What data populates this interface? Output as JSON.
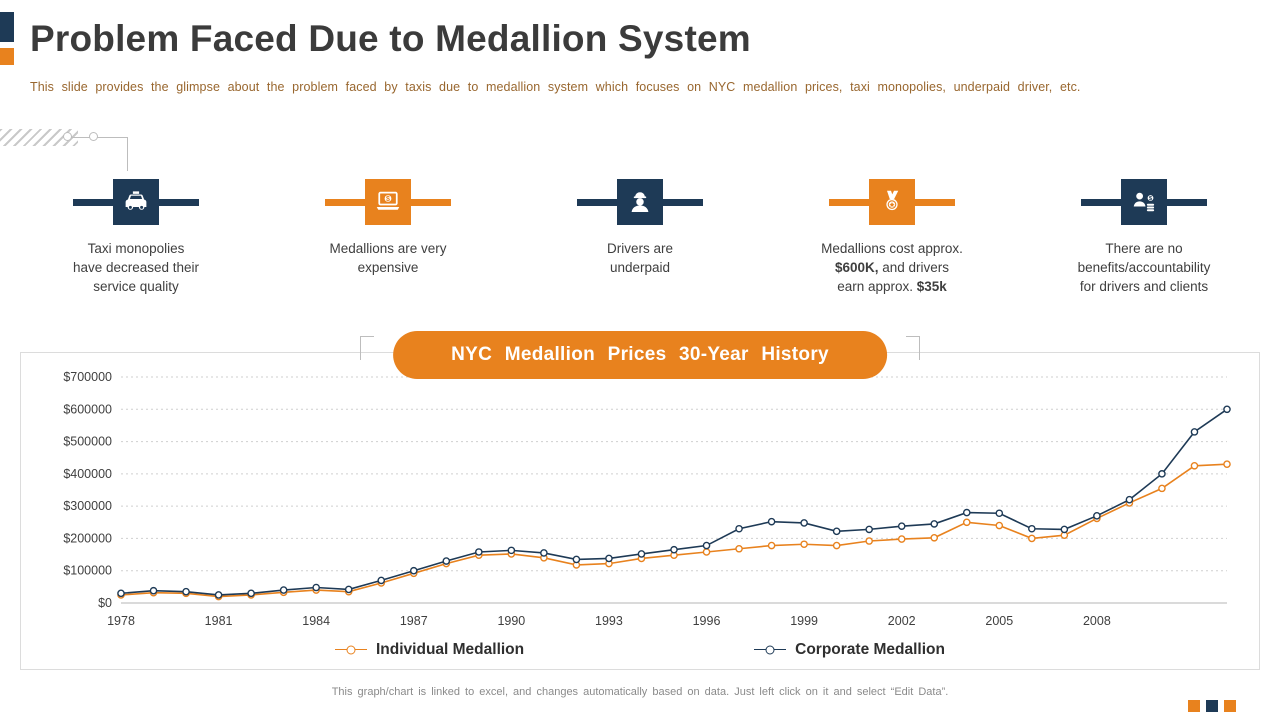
{
  "slide": {
    "title": "Problem Faced Due to Medallion System",
    "subtitle": "This slide provides the glimpse about the problem faced by taxis due to medallion system which focuses on NYC medallion prices, taxi monopolies, underpaid driver, etc."
  },
  "colors": {
    "navy": "#1E3A56",
    "orange": "#E8821E",
    "grid": "#cfcfcf",
    "text": "#3f3f3f"
  },
  "problems": [
    {
      "icon": "taxi-icon",
      "color": "navy",
      "lines": [
        "Taxi monopolies",
        "have decreased their",
        "service quality"
      ]
    },
    {
      "icon": "laptop-money-icon",
      "color": "orange",
      "lines": [
        "Medallions are very",
        "expensive"
      ]
    },
    {
      "icon": "driver-icon",
      "color": "navy",
      "lines": [
        "Drivers are",
        "underpaid"
      ]
    },
    {
      "icon": "medal-icon",
      "color": "orange",
      "line1": "Medallions cost approx.",
      "line2_bold": "$600K,",
      "line2_rest": " and drivers",
      "line3_normal": "earn approx. ",
      "line3_bold": "$35k"
    },
    {
      "icon": "benefits-icon",
      "color": "navy",
      "lines": [
        "There are no",
        "benefits/accountability",
        "for drivers and clients"
      ]
    }
  ],
  "banner": {
    "label": "NYC Medallion Prices 30-Year History"
  },
  "chart_data": {
    "type": "line",
    "title": "NYC Medallion Prices 30-Year History",
    "x": [
      1978,
      1979,
      1980,
      1981,
      1982,
      1983,
      1984,
      1985,
      1986,
      1987,
      1988,
      1989,
      1990,
      1991,
      1992,
      1993,
      1994,
      1995,
      1996,
      1997,
      1998,
      1999,
      2000,
      2001,
      2002,
      2003,
      2004,
      2005,
      2006,
      2007,
      2008,
      2009,
      2010,
      2011,
      2012
    ],
    "series": [
      {
        "name": "Individual Medallion",
        "color": "#E8821E",
        "values": [
          25000,
          32000,
          30000,
          20000,
          25000,
          33000,
          40000,
          35000,
          62000,
          92000,
          122000,
          148000,
          152000,
          140000,
          118000,
          122000,
          138000,
          148000,
          158000,
          168000,
          178000,
          182000,
          178000,
          192000,
          198000,
          202000,
          250000,
          240000,
          200000,
          210000,
          262000,
          310000,
          355000,
          425000,
          430000
        ]
      },
      {
        "name": "Corporate Medallion",
        "color": "#1E3A56",
        "values": [
          30000,
          38000,
          35000,
          25000,
          30000,
          40000,
          48000,
          42000,
          70000,
          100000,
          130000,
          158000,
          163000,
          155000,
          135000,
          138000,
          152000,
          165000,
          178000,
          230000,
          252000,
          248000,
          222000,
          228000,
          238000,
          245000,
          280000,
          278000,
          230000,
          228000,
          270000,
          320000,
          400000,
          530000,
          600000
        ]
      }
    ],
    "ylim": [
      0,
      700000
    ],
    "yticks": [
      0,
      100000,
      200000,
      300000,
      400000,
      500000,
      600000,
      700000
    ],
    "ytick_labels": [
      "$0",
      "$100000",
      "$200000",
      "$300000",
      "$400000",
      "$500000",
      "$600000",
      "$700000"
    ],
    "xticks": [
      1978,
      1981,
      1984,
      1987,
      1990,
      1993,
      1996,
      1999,
      2002,
      2005,
      2008
    ],
    "grid": "horizontal-dashed",
    "legend_position": "bottom"
  },
  "footer": {
    "note": "This graph/chart is linked to excel, and changes automatically based on data. Just left click on it and select “Edit Data”."
  }
}
